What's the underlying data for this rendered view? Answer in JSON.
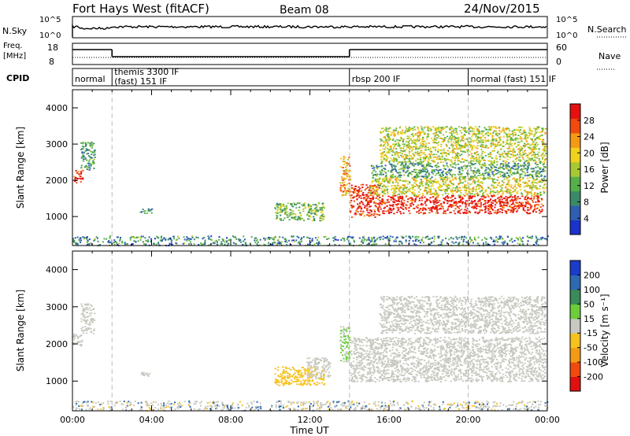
{
  "header": {
    "station": "Fort Hays West (fitACF)",
    "beam": "Beam 08",
    "date": "24/Nov/2015"
  },
  "top_panels": {
    "nsky_label": "N.Sky",
    "nsky_ticks": [
      "10^5",
      "10^0"
    ],
    "nsearch_label": "N.Search",
    "nsearch_ticks": [
      "10^5",
      "10^0"
    ],
    "freq_label": "Freq.",
    "freq_unit": "[MHz]",
    "freq_ticks": [
      "18",
      "8"
    ],
    "nave_label": "Nave",
    "nave_ticks": [
      "60",
      "0"
    ],
    "cpid_label": "CPID",
    "cpid_segments": [
      {
        "start": 0.0,
        "end": 2.0,
        "label": "normal"
      },
      {
        "start": 2.0,
        "end": 14.0,
        "label": "themis 3300 IF",
        "label2": "(fast) 151 IF"
      },
      {
        "start": 14.0,
        "end": 20.0,
        "label": "rbsp 200 IF"
      },
      {
        "start": 20.0,
        "end": 24.0,
        "label": "normal (fast) 151 IF"
      }
    ],
    "freq_hi_segments": [
      [
        0.0,
        2.0
      ],
      [
        14.0,
        24.0
      ]
    ],
    "freq_lo_segments": [
      [
        2.0,
        14.0
      ]
    ]
  },
  "chart_data": [
    {
      "type": "heatmap",
      "name": "power",
      "xlabel": "Time UT",
      "ylabel": "Slant Range [km]",
      "xlim": [
        0,
        24
      ],
      "ylim": [
        200,
        4500
      ],
      "x_ticks": [
        "00:00",
        "04:00",
        "08:00",
        "12:00",
        "16:00",
        "20:00",
        "00:00"
      ],
      "y_ticks": [
        1000,
        2000,
        3000,
        4000
      ],
      "colorbar_label": "Power [dB]",
      "colorbar_ticks": [
        4,
        8,
        12,
        16,
        20,
        24,
        28
      ],
      "colorbar_range": [
        0,
        32
      ],
      "colorbar_colors": [
        "#1a33cc",
        "#2f5fb0",
        "#3a8a6a",
        "#55b04a",
        "#a6c832",
        "#f0d21e",
        "#f59a14",
        "#f04a10",
        "#e61010"
      ],
      "regions": [
        {
          "t": [
            0.0,
            0.5
          ],
          "r": [
            1950,
            2300
          ],
          "v": 29
        },
        {
          "t": [
            0.4,
            1.1
          ],
          "r": [
            2300,
            3100
          ],
          "v": 10
        },
        {
          "t": [
            3.4,
            4.0
          ],
          "r": [
            1100,
            1250
          ],
          "v": 8
        },
        {
          "t": [
            10.2,
            12.7
          ],
          "r": [
            900,
            1400
          ],
          "v": 14
        },
        {
          "t": [
            13.5,
            14.0
          ],
          "r": [
            1600,
            2700
          ],
          "v": 22
        },
        {
          "t": [
            14.0,
            15.5
          ],
          "r": [
            1000,
            1900
          ],
          "v": 29
        },
        {
          "t": [
            15.5,
            23.8
          ],
          "r": [
            1100,
            1600
          ],
          "v": 30
        },
        {
          "t": [
            15.0,
            23.9
          ],
          "r": [
            1600,
            2100
          ],
          "v": 18
        },
        {
          "t": [
            15.0,
            23.9
          ],
          "r": [
            2100,
            2500
          ],
          "v": 11
        },
        {
          "t": [
            15.5,
            23.9
          ],
          "r": [
            2500,
            3500
          ],
          "v": 17
        }
      ],
      "vertical_markers_t": [
        2.0,
        14.0,
        20.0
      ]
    },
    {
      "type": "heatmap",
      "name": "velocity",
      "xlabel": "Time UT",
      "ylabel": "Slant Range [km]",
      "xlim": [
        0,
        24
      ],
      "ylim": [
        200,
        4500
      ],
      "x_ticks": [
        "00:00",
        "04:00",
        "08:00",
        "12:00",
        "16:00",
        "20:00",
        "00:00"
      ],
      "y_ticks": [
        1000,
        2000,
        3000,
        4000
      ],
      "colorbar_label": "Velocity [m s⁻¹]",
      "colorbar_ticks": [
        "200",
        "100",
        "50",
        "15",
        "-15",
        "-50",
        "-100",
        "-200"
      ],
      "colorbar_colors": [
        "#1a3cc8",
        "#2e6ab0",
        "#3a8a5a",
        "#6ccc3a",
        "#c8c8c0",
        "#f5c21e",
        "#f59a14",
        "#f04a10",
        "#e01010"
      ],
      "regions": [
        {
          "t": [
            0.0,
            0.5
          ],
          "r": [
            1950,
            2300
          ],
          "v": "ground"
        },
        {
          "t": [
            0.4,
            1.1
          ],
          "r": [
            2300,
            3100
          ],
          "v": "ground"
        },
        {
          "t": [
            3.4,
            4.0
          ],
          "r": [
            1100,
            1250
          ],
          "v": "ground"
        },
        {
          "t": [
            10.2,
            12.7
          ],
          "r": [
            900,
            1400
          ],
          "v": -50
        },
        {
          "t": [
            11.8,
            13.0
          ],
          "r": [
            1100,
            1650
          ],
          "v": "ground"
        },
        {
          "t": [
            13.5,
            14.0
          ],
          "r": [
            1500,
            2500
          ],
          "v": 40
        },
        {
          "t": [
            14.0,
            23.9
          ],
          "r": [
            1000,
            2200
          ],
          "v": "ground"
        },
        {
          "t": [
            15.5,
            23.9
          ],
          "r": [
            2300,
            3300
          ],
          "v": "ground"
        }
      ],
      "vertical_markers_t": [
        2.0,
        14.0,
        20.0
      ]
    }
  ]
}
